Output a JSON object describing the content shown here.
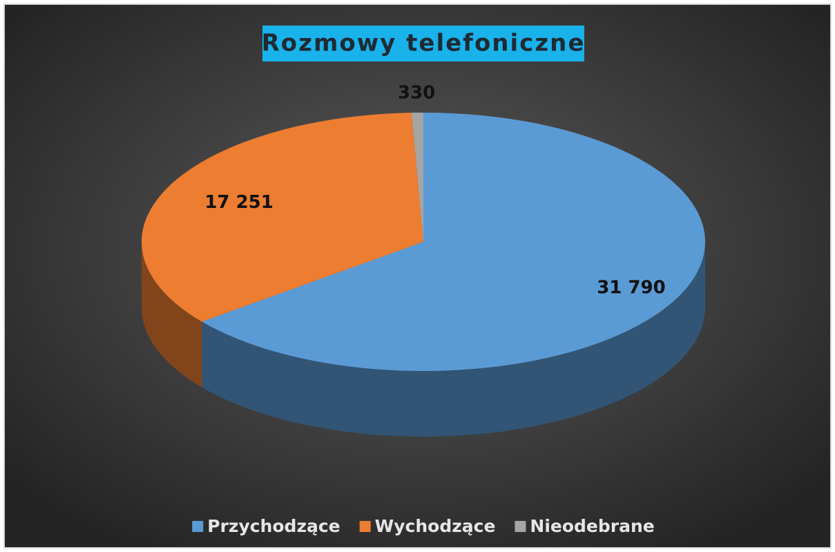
{
  "chart_data": {
    "type": "pie",
    "title": "Rozmowy telefoniczne",
    "categories": [
      "Przychodzące",
      "Wychodzące",
      "Nieodebrane"
    ],
    "values": [
      31790,
      17251,
      330
    ],
    "value_labels": [
      "31 790",
      "17 251",
      "330"
    ],
    "colors": [
      "#5b9bd5",
      "#ed7d31",
      "#a5a5a5"
    ],
    "legend": "bottom"
  }
}
